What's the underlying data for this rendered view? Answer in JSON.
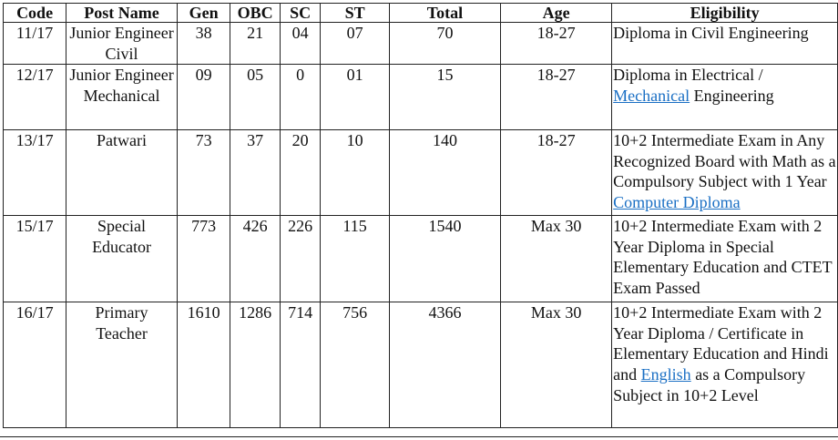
{
  "headers": {
    "code": "Code",
    "post_name": "Post Name",
    "gen": "Gen",
    "obc": "OBC",
    "sc": "SC",
    "st": "ST",
    "total": "Total",
    "age": "Age",
    "eligibility": "Eligibility"
  },
  "rows": [
    {
      "code": "11/17",
      "post_name": "Junior Engineer Civil",
      "gen": "38",
      "obc": "21",
      "sc": "04",
      "st": "07",
      "total": "70",
      "age": "18-27",
      "elig": {
        "a": "Diploma in Civil Engineering"
      }
    },
    {
      "code": "12/17",
      "post_name": "Junior Engineer Mechanical",
      "gen": "09",
      "obc": "05",
      "sc": "0",
      "st": "01",
      "total": "15",
      "age": "18-27",
      "elig": {
        "a": "Diploma in Electrical / ",
        "link": "Mechanical",
        "b": " Engineering"
      }
    },
    {
      "code": "13/17",
      "post_name": "Patwari",
      "gen": "73",
      "obc": "37",
      "sc": "20",
      "st": "10",
      "total": "140",
      "age": "18-27",
      "elig": {
        "a": "10+2 Intermediate Exam in Any Recognized Board with Math as a Compulsory Subject with 1 Year ",
        "link": "Computer Diploma"
      }
    },
    {
      "code": "15/17",
      "post_name": "Special Educator",
      "gen": "773",
      "obc": "426",
      "sc": "226",
      "st": "115",
      "total": "1540",
      "age": "Max 30",
      "elig": {
        "a": "10+2 Intermediate Exam with 2 Year Diploma in Special Elementary Education and CTET Exam Passed"
      }
    },
    {
      "code": "16/17",
      "post_name": "Primary Teacher",
      "gen": "1610",
      "obc": "1286",
      "sc": "714",
      "st": "756",
      "total": "4366",
      "age": "Max 30",
      "elig": {
        "a": "10+2 Intermediate Exam with 2 Year Diploma / Certificate in Elementary Education and Hindi and ",
        "link": "English",
        "b": " as a Compulsory Subject in 10+2 Level"
      }
    }
  ]
}
